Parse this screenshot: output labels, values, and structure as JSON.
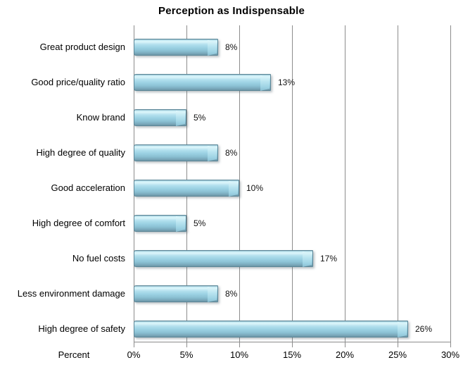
{
  "chart_data": {
    "type": "bar",
    "orientation": "horizontal",
    "title": "Perception as Indispensable",
    "xlabel": "Percent",
    "ylabel": "",
    "categories": [
      "Great product design",
      "Good price/quality ratio",
      "Know brand",
      "High degree of quality",
      "Good acceleration",
      "High degree of comfort",
      "No fuel costs",
      "Less environment damage",
      "High degree of safety"
    ],
    "values": [
      8,
      13,
      5,
      8,
      10,
      5,
      17,
      8,
      26
    ],
    "value_labels": [
      "8%",
      "13%",
      "5%",
      "8%",
      "10%",
      "5%",
      "17%",
      "8%",
      "26%"
    ],
    "x_ticks": [
      "0%",
      "5%",
      "10%",
      "15%",
      "20%",
      "25%",
      "30%"
    ],
    "x_tick_values": [
      0,
      5,
      10,
      15,
      20,
      25,
      30
    ],
    "xlim": [
      0,
      30
    ],
    "grid": "vertical-only",
    "legend": "none",
    "colors": {
      "background": "#FFFFFF",
      "bar_fill": "#9CD2E3",
      "bar_highlight": "#DDF6FB",
      "bar_dark_edge": "#6D97A8",
      "bar_border": "#5C8697",
      "bar_cap_light": "#E2F8FC",
      "gridline": "#8C8C8C",
      "text": "#000000"
    }
  }
}
